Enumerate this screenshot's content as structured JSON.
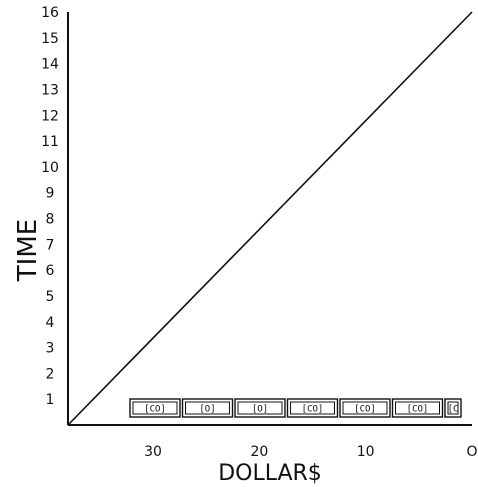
{
  "chart_data": {
    "type": "line",
    "xlabel": "DOLLAR$",
    "ylabel": "TIME",
    "xlim": [
      38,
      0
    ],
    "ylim": [
      0,
      16
    ],
    "x_reversed": true,
    "x_ticks": [
      30,
      20,
      10,
      0
    ],
    "x_tick_labels": [
      "30",
      "20",
      "10",
      "O"
    ],
    "y_ticks": [
      1,
      2,
      3,
      4,
      5,
      6,
      7,
      8,
      9,
      10,
      11,
      12,
      13,
      14,
      15,
      16
    ],
    "y_tick_labels": [
      "1",
      "2",
      "3",
      "4",
      "5",
      "6",
      "7",
      "8",
      "9",
      "10",
      "11",
      "12",
      "13",
      "14",
      "15",
      "16"
    ],
    "grid": false,
    "series": [
      {
        "x": [
          38,
          0
        ],
        "y": [
          0,
          16
        ]
      }
    ],
    "annotations": {
      "dollar_bills": [
        {
          "label": "[CO]"
        },
        {
          "label": "[O]"
        },
        {
          "label": "[O]"
        },
        {
          "label": "[CO]"
        },
        {
          "label": "[CO]"
        },
        {
          "label": "[CO]"
        },
        {
          "label": "[C"
        }
      ]
    },
    "line_color": "#111111"
  }
}
